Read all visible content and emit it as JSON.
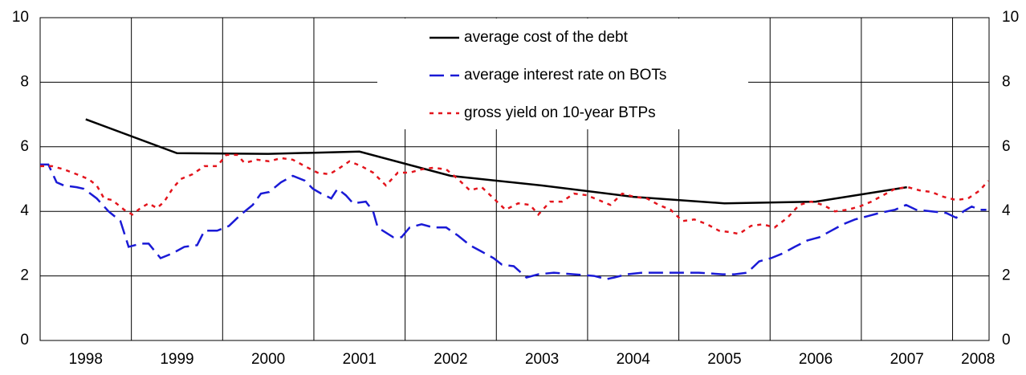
{
  "chart_data": {
    "type": "line",
    "categories": [
      "1998",
      "1999",
      "2000",
      "2001",
      "2002",
      "2003",
      "2004",
      "2005",
      "2006",
      "2007",
      "2008"
    ],
    "xlim": [
      1998,
      2008.4
    ],
    "ylim": [
      0,
      10
    ],
    "yticks": [
      0,
      2,
      4,
      6,
      8,
      10
    ],
    "grid": true,
    "legend": "top-center",
    "series": [
      {
        "name": "average cost of the debt",
        "color": "#000000",
        "style": "solid",
        "x": [
          1998.5,
          1999.5,
          2000.5,
          2001.5,
          2002.5,
          2003.5,
          2004.5,
          2005.5,
          2006.5,
          2007.5
        ],
        "values": [
          6.85,
          5.8,
          5.78,
          5.85,
          5.1,
          4.8,
          4.45,
          4.25,
          4.3,
          4.75
        ]
      },
      {
        "name": "average interest rate on BOTs",
        "color": "#1a1ad6",
        "style": "dashed",
        "x": [
          1998.0,
          1998.09,
          1998.18,
          1998.26,
          1998.4,
          1998.48,
          1998.62,
          1998.75,
          1998.88,
          1998.97,
          1999.1,
          1999.19,
          1999.32,
          1999.45,
          1999.58,
          1999.72,
          1999.8,
          1999.94,
          2000.07,
          2000.2,
          2000.33,
          2000.42,
          2000.51,
          2000.64,
          2000.77,
          2000.9,
          2000.99,
          2001.08,
          2001.19,
          2001.26,
          2001.35,
          2001.43,
          2001.57,
          2001.65,
          2001.7,
          2001.87,
          2001.96,
          2002.05,
          2002.18,
          2002.31,
          2002.45,
          2002.58,
          2002.71,
          2002.84,
          2002.97,
          2003.06,
          2003.19,
          2003.33,
          2003.46,
          2003.63,
          2003.85,
          2004.07,
          2004.21,
          2004.29,
          2004.43,
          2004.6,
          2004.78,
          2005.04,
          2005.22,
          2005.48,
          2005.61,
          2005.75,
          2005.88,
          2006.01,
          2006.14,
          2006.27,
          2006.41,
          2006.54,
          2006.67,
          2006.8,
          2006.93,
          2007.07,
          2007.2,
          2007.37,
          2007.49,
          2007.6,
          2007.77,
          2007.93,
          2008.04,
          2008.12,
          2008.21,
          2008.3,
          2008.37
        ],
        "values": [
          5.45,
          5.45,
          4.9,
          4.8,
          4.75,
          4.7,
          4.4,
          4.0,
          3.7,
          2.9,
          3.0,
          3.0,
          2.55,
          2.7,
          2.9,
          2.95,
          3.4,
          3.4,
          3.55,
          3.9,
          4.2,
          4.55,
          4.6,
          4.9,
          5.1,
          4.95,
          4.7,
          4.55,
          4.4,
          4.7,
          4.5,
          4.25,
          4.3,
          4.0,
          3.5,
          3.2,
          3.2,
          3.5,
          3.6,
          3.5,
          3.5,
          3.25,
          2.95,
          2.75,
          2.55,
          2.35,
          2.3,
          1.95,
          2.05,
          2.1,
          2.05,
          2.0,
          1.9,
          1.95,
          2.05,
          2.1,
          2.1,
          2.1,
          2.1,
          2.05,
          2.05,
          2.1,
          2.45,
          2.55,
          2.7,
          2.9,
          3.1,
          3.2,
          3.4,
          3.6,
          3.75,
          3.85,
          3.95,
          4.05,
          4.2,
          4.05,
          4.0,
          3.95,
          3.8,
          4.0,
          4.15,
          4.05,
          4.05
        ]
      },
      {
        "name": "gross yield on 10-year BTPs",
        "color": "#e3141c",
        "style": "dotted",
        "x": [
          1998.0,
          1998.13,
          1998.26,
          1998.4,
          1998.53,
          1998.62,
          1998.7,
          1998.79,
          1998.92,
          1999.01,
          1999.1,
          1999.19,
          1999.28,
          1999.36,
          1999.45,
          1999.54,
          1999.67,
          1999.8,
          1999.94,
          2000.04,
          2000.16,
          2000.24,
          2000.38,
          2000.51,
          2000.64,
          2000.77,
          2000.9,
          2001.04,
          2001.17,
          2001.26,
          2001.39,
          2001.52,
          2001.65,
          2001.79,
          2001.92,
          2002.05,
          2002.18,
          2002.31,
          2002.45,
          2002.58,
          2002.71,
          2002.84,
          2002.97,
          2003.1,
          2003.24,
          2003.37,
          2003.46,
          2003.59,
          2003.72,
          2003.85,
          2003.99,
          2004.12,
          2004.25,
          2004.38,
          2004.51,
          2004.65,
          2004.78,
          2004.91,
          2005.04,
          2005.17,
          2005.31,
          2005.44,
          2005.57,
          2005.66,
          2005.79,
          2005.92,
          2006.05,
          2006.19,
          2006.32,
          2006.45,
          2006.58,
          2006.71,
          2006.85,
          2006.98,
          2007.11,
          2007.24,
          2007.37,
          2007.51,
          2007.64,
          2007.77,
          2007.9,
          2008.04,
          2008.17,
          2008.3,
          2008.39
        ],
        "values": [
          5.4,
          5.4,
          5.3,
          5.15,
          5.0,
          4.8,
          4.4,
          4.35,
          4.05,
          3.9,
          4.1,
          4.25,
          4.1,
          4.3,
          4.7,
          5.0,
          5.15,
          5.4,
          5.4,
          5.75,
          5.75,
          5.5,
          5.6,
          5.55,
          5.65,
          5.6,
          5.4,
          5.2,
          5.15,
          5.3,
          5.55,
          5.4,
          5.2,
          4.8,
          5.2,
          5.2,
          5.3,
          5.35,
          5.3,
          5.0,
          4.65,
          4.75,
          4.4,
          4.05,
          4.25,
          4.2,
          3.9,
          4.3,
          4.3,
          4.55,
          4.5,
          4.35,
          4.2,
          4.55,
          4.45,
          4.4,
          4.2,
          4.05,
          3.7,
          3.75,
          3.6,
          3.4,
          3.35,
          3.3,
          3.55,
          3.6,
          3.5,
          3.8,
          4.2,
          4.3,
          4.2,
          4.0,
          4.05,
          4.15,
          4.3,
          4.5,
          4.7,
          4.75,
          4.65,
          4.6,
          4.45,
          4.35,
          4.4,
          4.65,
          4.95
        ]
      }
    ]
  }
}
